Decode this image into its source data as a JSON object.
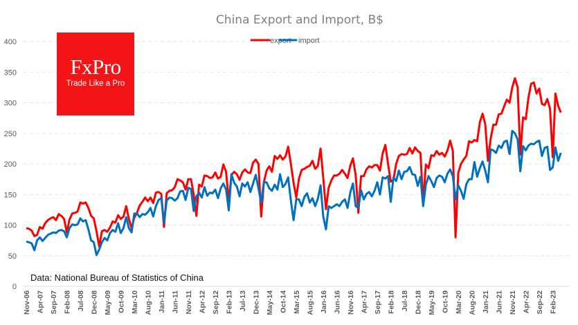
{
  "chart_data": {
    "type": "line",
    "title": "China Export and Import, B$",
    "xlabel": "",
    "ylabel": "",
    "ylim": [
      0,
      400
    ],
    "yticks": [
      0,
      50,
      100,
      150,
      200,
      250,
      300,
      350,
      400
    ],
    "grid": true,
    "legend_position": "top-center",
    "x_start": "Nov-06",
    "x_end": "May-23",
    "x_tick_labels": [
      "Nov-06",
      "Apr-07",
      "Sep-07",
      "Feb-08",
      "Jul-08",
      "Dec-08",
      "May-09",
      "Oct-09",
      "Mar-10",
      "Aug-10",
      "Jan-11",
      "Jun-11",
      "Nov-11",
      "Apr-12",
      "Sep-12",
      "Feb-13",
      "Jul-13",
      "Dec-13",
      "May-14",
      "Oct-14",
      "Mar-15",
      "Aug-15",
      "Jan-16",
      "Jun-16",
      "Nov-16",
      "Apr-17",
      "Sep-17",
      "Feb-18",
      "Jul-18",
      "Dec-18",
      "May-19",
      "Oct-19",
      "Mar-20",
      "Aug-20",
      "Jan-21",
      "Jun-21",
      "Nov-21",
      "Apr-22",
      "Sep-22",
      "Feb-23"
    ],
    "series": [
      {
        "name": "export",
        "color": "#ff0000",
        "values": [
          95,
          94,
          91,
          82,
          84,
          97,
          94,
          103,
          108,
          111,
          113,
          108,
          118,
          115,
          110,
          88,
          109,
          119,
          120,
          122,
          137,
          135,
          137,
          128,
          115,
          111,
          90,
          65,
          90,
          92,
          89,
          96,
          106,
          104,
          116,
          110,
          114,
          131,
          110,
          95,
          112,
          120,
          132,
          138,
          145,
          139,
          145,
          136,
          153,
          154,
          151,
          97,
          152,
          156,
          157,
          162,
          175,
          173,
          170,
          158,
          175,
          175,
          150,
          115,
          166,
          163,
          181,
          180,
          177,
          178,
          186,
          176,
          179,
          199,
          187,
          139,
          182,
          187,
          183,
          174,
          186,
          191,
          186,
          185,
          202,
          207,
          200,
          114,
          170,
          189,
          196,
          187,
          213,
          208,
          214,
          207,
          212,
          228,
          200,
          169,
          145,
          176,
          190,
          192,
          195,
          197,
          205,
          192,
          197,
          225,
          177,
          126,
          161,
          173,
          181,
          181,
          184,
          190,
          184,
          177,
          197,
          209,
          182,
          120,
          180,
          180,
          191,
          196,
          194,
          198,
          198,
          189,
          217,
          231,
          200,
          171,
          174,
          200,
          213,
          216,
          215,
          216,
          226,
          217,
          227,
          221,
          218,
          135,
          199,
          193,
          214,
          213,
          221,
          215,
          218,
          212,
          222,
          238,
          221,
          80,
          185,
          200,
          207,
          213,
          237,
          235,
          239,
          237,
          268,
          282,
          265,
          205,
          241,
          264,
          264,
          281,
          282,
          294,
          305,
          300,
          325,
          340,
          325,
          215,
          276,
          273,
          308,
          331,
          333,
          315,
          323,
          298,
          296,
          306,
          290,
          211,
          315,
          295,
          284
        ]
      },
      {
        "name": "import",
        "color": "#0070c0",
        "values": [
          73,
          72,
          70,
          59,
          75,
          80,
          74,
          79,
          84,
          86,
          88,
          87,
          91,
          92,
          90,
          80,
          95,
          101,
          100,
          101,
          111,
          106,
          108,
          93,
          75,
          72,
          51,
          60,
          72,
          79,
          75,
          87,
          92,
          89,
          103,
          87,
          95,
          113,
          95,
          88,
          119,
          119,
          113,
          118,
          117,
          121,
          128,
          114,
          131,
          141,
          144,
          104,
          140,
          145,
          144,
          140,
          144,
          155,
          156,
          141,
          161,
          159,
          123,
          147,
          153,
          145,
          162,
          148,
          153,
          152,
          158,
          144,
          160,
          168,
          158,
          124,
          183,
          169,
          163,
          147,
          168,
          163,
          170,
          154,
          168,
          182,
          160,
          137,
          170,
          170,
          160,
          156,
          166,
          158,
          183,
          162,
          167,
          178,
          140,
          108,
          142,
          142,
          131,
          146,
          152,
          137,
          144,
          131,
          143,
          165,
          114,
          93,
          131,
          128,
          131,
          134,
          131,
          138,
          142,
          128,
          153,
          168,
          131,
          128,
          157,
          142,
          151,
          154,
          147,
          156,
          170,
          150,
          178,
          176,
          180,
          138,
          178,
          172,
          189,
          175,
          187,
          188,
          195,
          183,
          182,
          164,
          179,
          131,
          166,
          180,
          172,
          162,
          177,
          181,
          179,
          170,
          184,
          191,
          180,
          142,
          165,
          156,
          143,
          167,
          175,
          175,
          203,
          179,
          193,
          204,
          189,
          170,
          224,
          222,
          218,
          230,
          226,
          236,
          238,
          216,
          254,
          250,
          240,
          188,
          229,
          222,
          230,
          233,
          232,
          236,
          238,
          213,
          226,
          228,
          190,
          194,
          227,
          205,
          218
        ]
      }
    ],
    "annotation": "Data: National Bureau of Statistics of China"
  },
  "logo": {
    "brand": "FxPro",
    "tagline": "Trade Like a Pro"
  }
}
